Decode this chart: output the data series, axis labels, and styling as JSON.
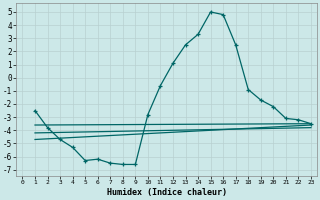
{
  "bg_color": "#cce8e8",
  "grid_color": "#b8d0d0",
  "line_color": "#006666",
  "xlabel": "Humidex (Indice chaleur)",
  "xlim": [
    -0.5,
    23.5
  ],
  "ylim": [
    -7.5,
    5.7
  ],
  "xticks": [
    0,
    1,
    2,
    3,
    4,
    5,
    6,
    7,
    8,
    9,
    10,
    11,
    12,
    13,
    14,
    15,
    16,
    17,
    18,
    19,
    20,
    21,
    22,
    23
  ],
  "yticks": [
    -7,
    -6,
    -5,
    -4,
    -3,
    -2,
    -1,
    0,
    1,
    2,
    3,
    4,
    5
  ],
  "line1_x": [
    1,
    2,
    3,
    4,
    5,
    6,
    7,
    8,
    9,
    10,
    11,
    12,
    13,
    14,
    15,
    16,
    17,
    18,
    19,
    20,
    21,
    22,
    23
  ],
  "line1_y": [
    -2.5,
    -3.8,
    -4.7,
    -5.3,
    -6.3,
    -6.2,
    -6.5,
    -6.6,
    -6.6,
    -2.8,
    -0.6,
    1.1,
    2.5,
    3.3,
    5.0,
    4.8,
    2.5,
    -0.9,
    -1.7,
    -2.2,
    -3.1,
    -3.2,
    -3.5
  ],
  "line2_x": [
    1,
    23
  ],
  "line2_y": [
    -3.6,
    -3.5
  ],
  "line3_x": [
    1,
    23
  ],
  "line3_y": [
    -4.2,
    -3.8
  ],
  "line4_x": [
    1,
    23
  ],
  "line4_y": [
    -4.7,
    -3.6
  ]
}
